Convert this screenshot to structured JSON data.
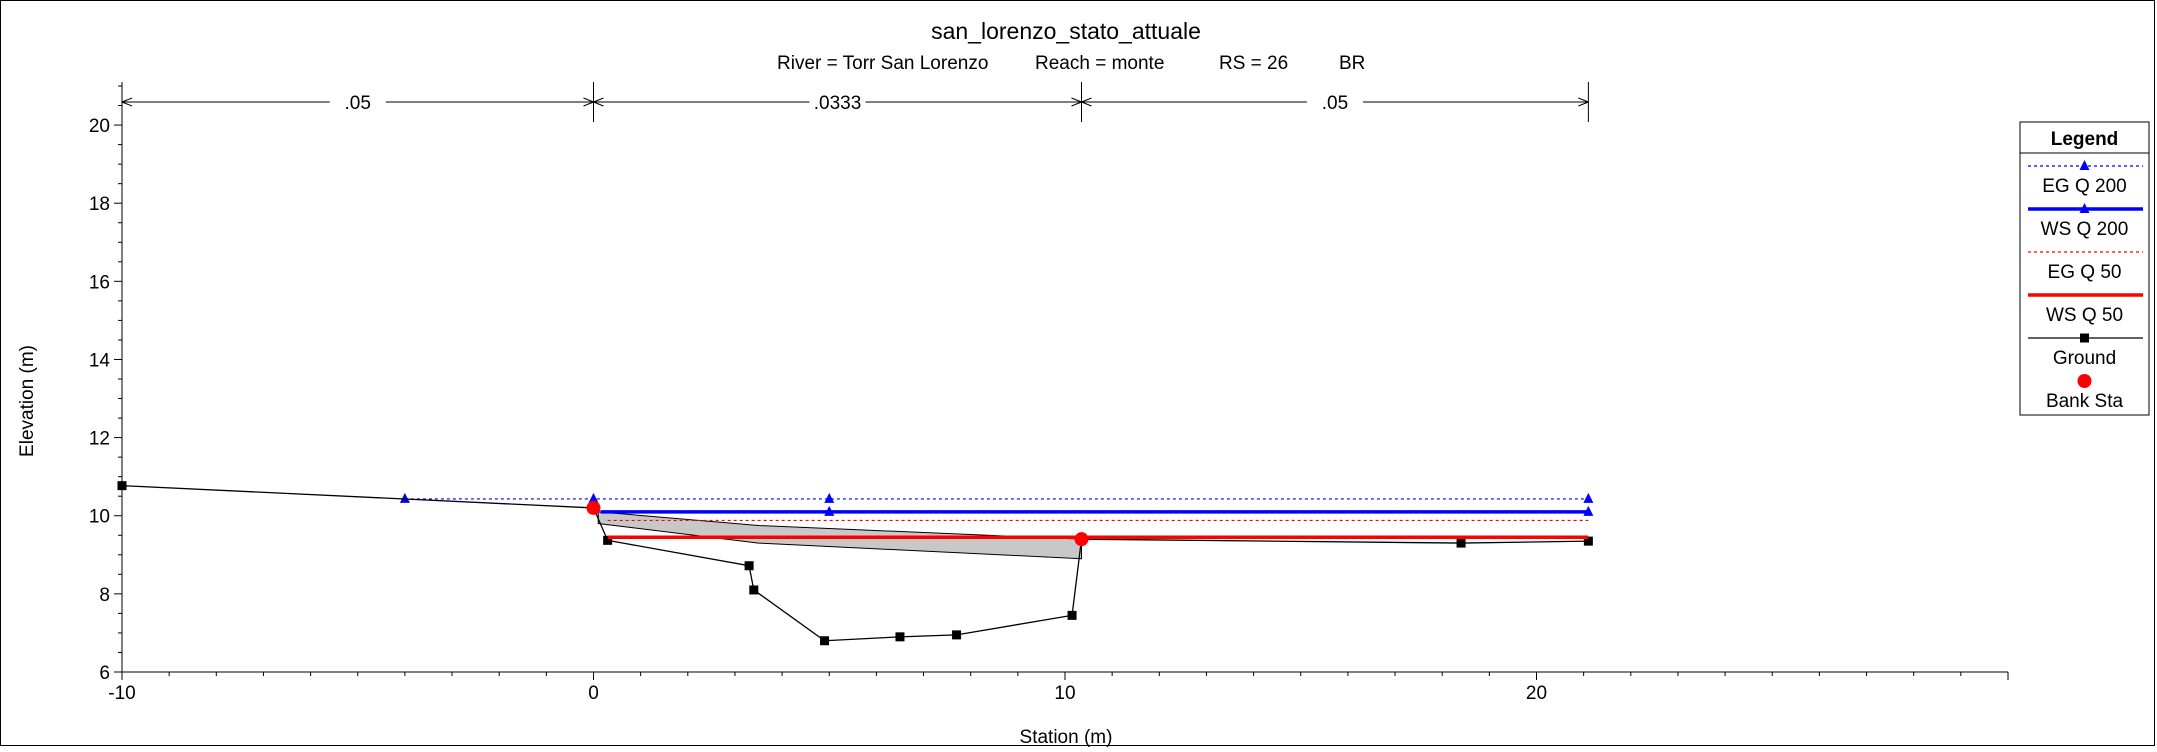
{
  "chart_data": {
    "type": "line",
    "title": "san_lorenzo_stato_attuale",
    "subtitle": {
      "river": "River = Torr San Lorenzo",
      "reach": "Reach = monte",
      "rs": "RS = 26",
      "section": "BR"
    },
    "xlabel": "Station (m)",
    "ylabel": "Elevation (m)",
    "xlim": [
      -10,
      30
    ],
    "ylim": [
      6,
      21
    ],
    "x_ticks": [
      -10,
      0,
      10,
      20
    ],
    "x_tick_labels": [
      "-10",
      "0",
      "10",
      "20"
    ],
    "y_ticks": [
      6,
      8,
      10,
      12,
      14,
      16,
      18,
      20
    ],
    "y_tick_labels": [
      "6",
      "8",
      "10",
      "12",
      "14",
      "16",
      "18",
      "20"
    ],
    "manning_n": [
      {
        "from": -10,
        "to": 0,
        "label": ".05"
      },
      {
        "from": 0,
        "to": 10.35,
        "label": ".0333"
      },
      {
        "from": 10.35,
        "to": 21.1,
        "label": ".05"
      }
    ],
    "series": [
      {
        "name": "EG Q 200",
        "color": "#0000ff",
        "style": "dotted-triangle",
        "x": [
          -4,
          0,
          5,
          21.1
        ],
        "y": [
          10.43,
          10.43,
          10.43,
          10.43
        ]
      },
      {
        "name": "WS Q 200",
        "color": "#0000ff",
        "style": "solid-thick",
        "x": [
          0.15,
          5,
          21.1
        ],
        "y": [
          10.1,
          10.1,
          10.1
        ]
      },
      {
        "name": "EG Q 50",
        "color": "#ff0000",
        "style": "dotted",
        "x": [
          0.3,
          21.1
        ],
        "y": [
          9.88,
          9.88
        ]
      },
      {
        "name": "WS Q 50",
        "color": "#ff0000",
        "style": "solid-thick",
        "x": [
          0.3,
          21.1
        ],
        "y": [
          9.45,
          9.45
        ]
      },
      {
        "name": "Ground",
        "color": "#000000",
        "style": "line-square",
        "x": [
          -10,
          0,
          0.3,
          3.3,
          3.4,
          4.9,
          6.5,
          7.7,
          10.15,
          10.35,
          18.4,
          21.1
        ],
        "y": [
          10.77,
          10.2,
          9.37,
          8.72,
          8.1,
          6.8,
          6.9,
          6.95,
          7.45,
          9.4,
          9.3,
          9.35
        ]
      },
      {
        "name": "Bank Sta",
        "color": "#ff0000",
        "style": "dot",
        "x": [
          0,
          10.35
        ],
        "y": [
          10.2,
          9.4
        ]
      }
    ],
    "bridge_deck": {
      "top": {
        "x": [
          0.1,
          3.5,
          10.35
        ],
        "y": [
          10.1,
          9.75,
          9.4
        ]
      },
      "bottom": {
        "x": [
          0.1,
          3.5,
          10.35
        ],
        "y": [
          9.8,
          9.3,
          8.9
        ]
      }
    },
    "legend": {
      "title": "Legend",
      "position": "right"
    },
    "grid": false
  }
}
